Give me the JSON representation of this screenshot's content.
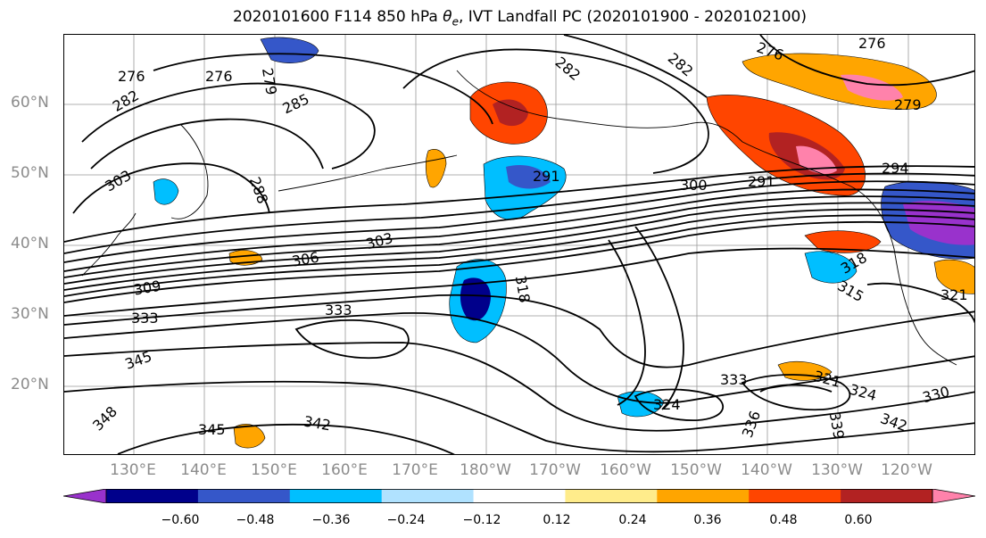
{
  "title": {
    "prefix": "2020101600 F114 850 hPa ",
    "theta": "θ",
    "theta_sub": "e",
    "suffix": ", IVT Landfall PC (2020101900 - 2020102100)"
  },
  "axes": {
    "lat_labels": [
      "60°N",
      "50°N",
      "40°N",
      "30°N",
      "20°N"
    ],
    "lon_labels": [
      "130°E",
      "140°E",
      "150°E",
      "160°E",
      "170°E",
      "180°W",
      "170°W",
      "160°W",
      "150°W",
      "140°W",
      "130°W",
      "120°W"
    ]
  },
  "colorbar": {
    "colors": [
      "#9932cc",
      "#00008b",
      "#3557c9",
      "#00bfff",
      "#b0e2ff",
      "#ffffff",
      "#ffec8b",
      "#ffa500",
      "#ff4500",
      "#b22222",
      "#ff82ab"
    ],
    "tick_labels": [
      "−0.60",
      "−0.48",
      "−0.36",
      "−0.24",
      "−0.12",
      "0.12",
      "0.24",
      "0.36",
      "0.48",
      "0.60"
    ]
  },
  "contour_labels": [
    "276",
    "276",
    "279",
    "282",
    "285",
    "282",
    "276",
    "276",
    "279",
    "282",
    "303",
    "288",
    "291",
    "300",
    "291",
    "294",
    "303",
    "306",
    "309",
    "333",
    "333",
    "318",
    "318",
    "315",
    "321",
    "345",
    "324",
    "333",
    "321",
    "324",
    "330",
    "348",
    "342",
    "345",
    "336",
    "339",
    "342"
  ]
}
